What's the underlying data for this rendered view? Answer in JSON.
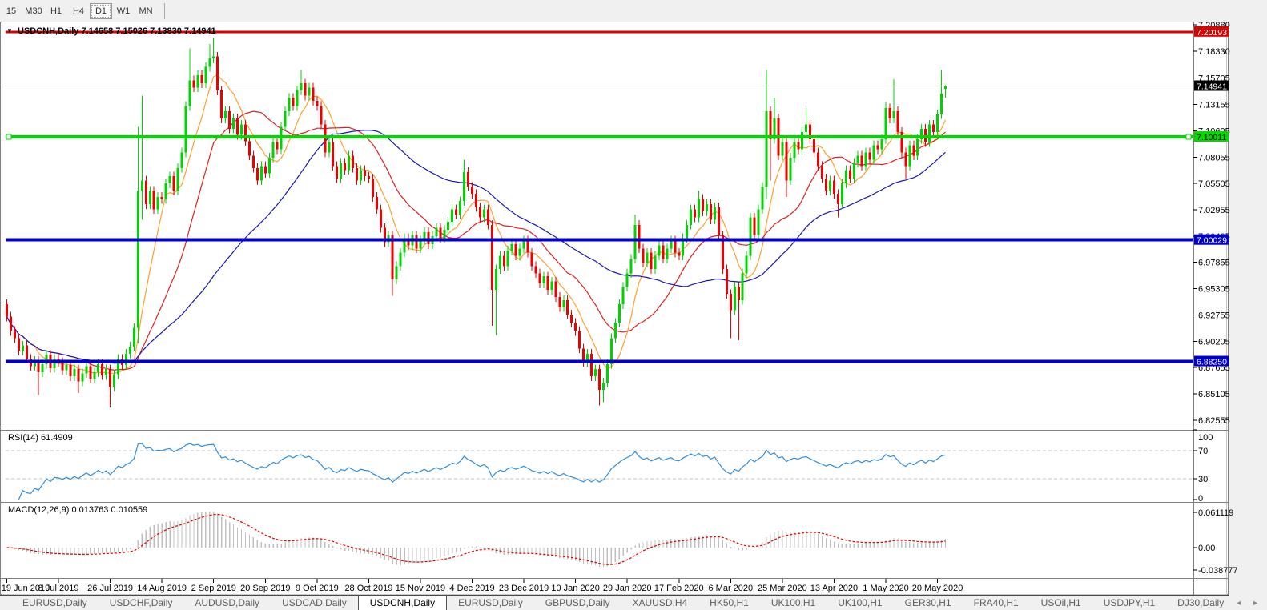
{
  "toolbar": {
    "timeframes": [
      "15",
      "M30",
      "H1",
      "H4",
      "D1",
      "W1",
      "MN"
    ],
    "active": "D1"
  },
  "title": {
    "symbol": "USDCNH,Daily",
    "open": "7.14658",
    "high": "7.15026",
    "low": "7.13830",
    "close": "7.14941"
  },
  "chart_data": {
    "type": "candlestick",
    "symbol": "USDCNH",
    "timeframe": "Daily",
    "x_labels": [
      "19 Jun 2019",
      "8 Jul 2019",
      "26 Jul 2019",
      "14 Aug 2019",
      "2 Sep 2019",
      "20 Sep 2019",
      "9 Oct 2019",
      "28 Oct 2019",
      "15 Nov 2019",
      "4 Dec 2019",
      "23 Dec 2019",
      "10 Jan 2020",
      "29 Jan 2020",
      "17 Feb 2020",
      "6 Mar 2020",
      "25 Mar 2020",
      "13 Apr 2020",
      "1 May 2020",
      "20 May 2020"
    ],
    "candles_per_label": 13,
    "ylim": [
      6.8193,
      7.2111
    ],
    "first_open": 6.938,
    "closes": [
      6.926,
      6.912,
      6.905,
      6.893,
      6.898,
      6.885,
      6.878,
      6.883,
      6.872,
      6.88,
      6.889,
      6.876,
      6.885,
      6.882,
      6.874,
      6.879,
      6.868,
      6.875,
      6.863,
      6.871,
      6.878,
      6.866,
      6.872,
      6.88,
      6.869,
      6.875,
      6.858,
      6.87,
      6.885,
      6.879,
      6.89,
      6.897,
      6.915,
      7.048,
      7.058,
      7.035,
      7.048,
      7.03,
      7.042,
      7.04,
      7.055,
      7.062,
      7.048,
      7.07,
      7.085,
      7.13,
      7.155,
      7.148,
      7.16,
      7.152,
      7.168,
      7.176,
      7.178,
      7.145,
      7.118,
      7.125,
      7.108,
      7.118,
      7.102,
      7.112,
      7.096,
      7.082,
      7.07,
      7.058,
      7.072,
      7.065,
      7.08,
      7.095,
      7.088,
      7.11,
      7.125,
      7.138,
      7.13,
      7.145,
      7.152,
      7.14,
      7.148,
      7.135,
      7.13,
      7.112,
      7.085,
      7.095,
      7.072,
      7.06,
      7.075,
      7.068,
      7.082,
      7.07,
      7.058,
      7.068,
      7.062,
      7.06,
      7.042,
      7.03,
      7.012,
      6.998,
      7.005,
      6.962,
      6.975,
      6.988,
      7.002,
      6.995,
      7.005,
      6.992,
      7.0,
      7.008,
      6.996,
      7.004,
      7.012,
      7.002,
      7.01,
      7.018,
      7.03,
      7.025,
      7.038,
      7.066,
      7.052,
      7.045,
      7.032,
      7.022,
      7.03,
      7.015,
      6.952,
      6.972,
      6.985,
      6.975,
      6.99,
      6.996,
      6.985,
      6.992,
      7.0,
      6.988,
      6.975,
      6.968,
      6.958,
      6.965,
      6.952,
      6.96,
      6.945,
      6.935,
      6.942,
      6.928,
      6.92,
      6.912,
      6.895,
      6.882,
      6.89,
      6.868,
      6.875,
      6.855,
      6.862,
      6.88,
      6.905,
      6.92,
      6.938,
      6.955,
      6.968,
      6.982,
      7.015,
      6.992,
      6.978,
      6.988,
      6.972,
      6.985,
      6.995,
      6.982,
      6.992,
      7.0,
      6.988,
      6.985,
      7.002,
      7.015,
      7.03,
      7.022,
      7.04,
      7.028,
      7.035,
      7.02,
      7.032,
      7.005,
      6.972,
      6.948,
      6.932,
      6.955,
      6.942,
      6.968,
      6.985,
      7.022,
      7.005,
      7.03,
      7.052,
      7.125,
      7.098,
      7.118,
      7.082,
      7.095,
      7.058,
      7.08,
      7.095,
      7.088,
      7.105,
      7.112,
      7.098,
      7.085,
      7.072,
      7.06,
      7.048,
      7.058,
      7.045,
      7.035,
      7.055,
      7.068,
      7.06,
      7.075,
      7.082,
      7.072,
      7.085,
      7.078,
      7.092,
      7.088,
      7.098,
      7.128,
      7.118,
      7.125,
      7.105,
      7.085,
      7.072,
      7.092,
      7.082,
      7.098,
      7.108,
      7.095,
      7.112,
      7.105,
      7.122,
      7.142,
      7.14941
    ],
    "wick": 0.0045,
    "overrides": {
      "8": {
        "l": 6.85
      },
      "18": {
        "l": 6.852
      },
      "26": {
        "l": 6.838
      },
      "33": {
        "h": 7.11,
        "l": 6.9
      },
      "34": {
        "h": 7.14,
        "l": 7.02
      },
      "46": {
        "h": 7.186
      },
      "51": {
        "h": 7.19
      },
      "52": {
        "h": 7.1965
      },
      "74": {
        "h": 7.165
      },
      "97": {
        "l": 6.946
      },
      "115": {
        "h": 7.078
      },
      "122": {
        "l": 6.917
      },
      "123": {
        "l": 6.908
      },
      "149": {
        "l": 6.84
      },
      "150": {
        "l": 6.843
      },
      "158": {
        "h": 7.025
      },
      "174": {
        "h": 7.048
      },
      "182": {
        "l": 6.905
      },
      "184": {
        "l": 6.903
      },
      "191": {
        "h": 7.165,
        "l": 7.04
      },
      "192": {
        "l": 7.058
      },
      "193": {
        "h": 7.138
      },
      "196": {
        "l": 7.042
      },
      "201": {
        "h": 7.128
      },
      "209": {
        "l": 7.022
      },
      "221": {
        "h": 7.134
      },
      "223": {
        "h": 7.156
      },
      "226": {
        "l": 7.06
      },
      "235": {
        "h": 7.165
      },
      "236": {
        "o": 7.14658,
        "h": 7.15026,
        "l": 7.1383
      }
    },
    "up_color": "#00d400",
    "down_color": "#ee0000",
    "price_axis_labels": [
      "7.20880",
      "7.18330",
      "7.15705",
      "7.13155",
      "7.10605",
      "7.08055",
      "7.05505",
      "7.02955",
      "7.00405",
      "6.97855",
      "6.95305",
      "6.92755",
      "6.90205",
      "6.87655",
      "6.85105",
      "6.82555"
    ],
    "hlines": [
      {
        "value": 7.20193,
        "label": "7.20193",
        "color": "#dd0000",
        "text_color": "#ffffff",
        "width": 3
      },
      {
        "value": 7.10011,
        "label": "7.10011",
        "color": "#00d800",
        "text_color": "#000000",
        "width": 4,
        "handles": true
      },
      {
        "value": 7.00029,
        "label": "7.00029",
        "color": "#0000cc",
        "text_color": "#ffffff",
        "width": 4
      },
      {
        "value": 6.8825,
        "label": "6.88250",
        "color": "#0000cc",
        "text_color": "#ffffff",
        "width": 4
      }
    ],
    "current_price": {
      "value": 7.14941,
      "label": "7.14941",
      "line_color": "#b8b8b8",
      "badge_color": "#000000",
      "text_color": "#ffffff"
    },
    "moving_averages": [
      {
        "period": 8,
        "color": "#ff9f2e"
      },
      {
        "period": 20,
        "color": "#e02020"
      },
      {
        "period": 50,
        "color": "#1818b4"
      }
    ],
    "rsi": {
      "label": "RSI(14) 61.4909",
      "period": 14,
      "current": 61.4909,
      "levels": [
        70,
        30
      ],
      "axis_labels": [
        "100",
        "70",
        "30",
        "0"
      ],
      "color": "#2e8fdd"
    },
    "macd": {
      "label": "MACD(12,26,9) 0.013763 0.010559",
      "fast": 12,
      "slow": 26,
      "signal_period": 9,
      "current_macd": 0.013763,
      "current_signal": 0.010559,
      "axis_labels": [
        "0.061119",
        "0.00",
        "-0.038777"
      ],
      "axis_values": [
        0.061119,
        0.0,
        -0.038777
      ],
      "hist_color": "#c0c0c0",
      "signal_color": "#e00000"
    }
  },
  "tabs": {
    "items": [
      "EURUSD,Daily",
      "USDCHF,Daily",
      "AUDUSD,Daily",
      "USDCAD,Daily",
      "USDCNH,Daily",
      "EURUSD,Daily",
      "GBPUSD,Daily",
      "XAUUSD,H4",
      "HK50,H1",
      "UK100,H1",
      "UK100,H1",
      "GER30,H1",
      "FRA40,H1",
      "USOil,H1",
      "USDJPY,H1",
      "DJ30,Daily"
    ],
    "active_index": 4,
    "scroll_left_icon": "◄",
    "scroll_right_icon": "►"
  }
}
